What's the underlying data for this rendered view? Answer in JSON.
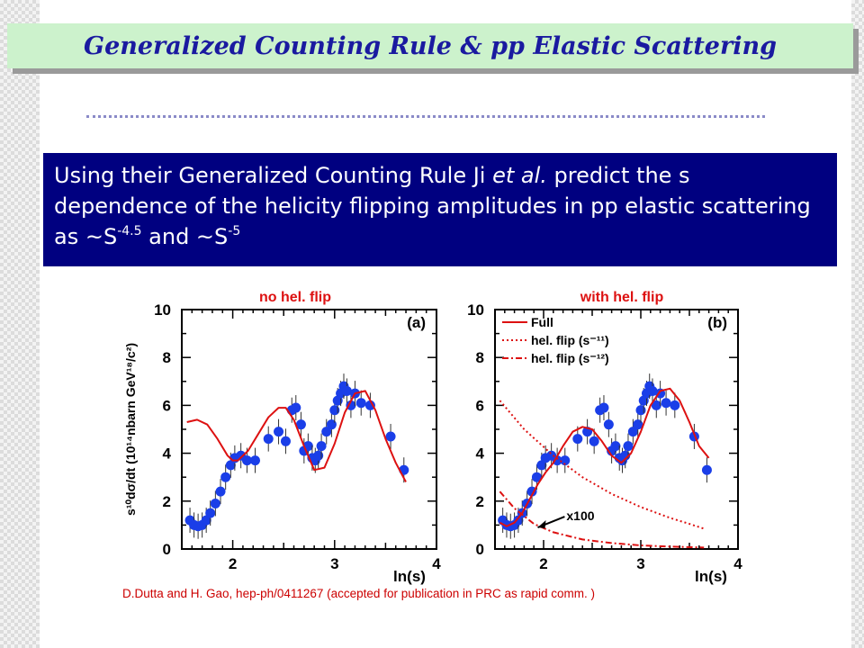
{
  "slide": {
    "title": "Generalized Counting Rule & pp Elastic Scattering",
    "text": {
      "part1": "Using their Generalized Counting Rule Ji ",
      "etal": "et al.",
      "part2": " predict the s dependence of  the helicity flipping amplitudes in pp elastic scattering as ~S",
      "exp1": "-4.5",
      "and": " and ~S",
      "exp2": "-5"
    },
    "citation": "D.Dutta and H. Gao, hep-ph/0411267 (accepted for publication in PRC as rapid comm. )"
  },
  "chart_data": [
    {
      "panel": "(a)",
      "heading": "no hel. flip",
      "type": "scatter",
      "ylabel": "s¹⁰dσ/dt (10¹⁴nbarn GeV¹⁸/c²)",
      "xlabel": "ln(s)",
      "xlim": [
        1.5,
        4.0
      ],
      "ylim": [
        0,
        10
      ],
      "xticks": [
        "2",
        "3",
        "4"
      ],
      "yticks": [
        "0",
        "2",
        "4",
        "6",
        "8",
        "10"
      ],
      "points": [
        [
          1.58,
          1.2
        ],
        [
          1.62,
          1.0
        ],
        [
          1.66,
          0.95
        ],
        [
          1.7,
          1.0
        ],
        [
          1.74,
          1.2
        ],
        [
          1.78,
          1.5
        ],
        [
          1.83,
          1.9
        ],
        [
          1.88,
          2.4
        ],
        [
          1.93,
          3.0
        ],
        [
          1.98,
          3.5
        ],
        [
          2.02,
          3.8
        ],
        [
          2.08,
          3.9
        ],
        [
          2.14,
          3.7
        ],
        [
          2.22,
          3.7
        ],
        [
          2.35,
          4.6
        ],
        [
          2.45,
          4.9
        ],
        [
          2.52,
          4.5
        ],
        [
          2.58,
          5.8
        ],
        [
          2.62,
          5.9
        ],
        [
          2.67,
          5.2
        ],
        [
          2.7,
          4.1
        ],
        [
          2.74,
          4.3
        ],
        [
          2.78,
          3.8
        ],
        [
          2.81,
          3.7
        ],
        [
          2.84,
          3.9
        ],
        [
          2.87,
          4.3
        ],
        [
          2.92,
          4.9
        ],
        [
          2.97,
          5.2
        ],
        [
          3.0,
          5.8
        ],
        [
          3.03,
          6.2
        ],
        [
          3.06,
          6.5
        ],
        [
          3.09,
          6.8
        ],
        [
          3.12,
          6.6
        ],
        [
          3.16,
          6.0
        ],
        [
          3.2,
          6.5
        ],
        [
          3.26,
          6.1
        ],
        [
          3.35,
          6.0
        ],
        [
          3.55,
          4.7
        ],
        [
          3.68,
          3.3
        ]
      ],
      "series": [
        {
          "style": "solid",
          "color": "#dd1111",
          "x": [
            1.55,
            1.65,
            1.75,
            1.85,
            1.95,
            2.0,
            2.05,
            2.15,
            2.25,
            2.35,
            2.45,
            2.52,
            2.6,
            2.7,
            2.8,
            2.9,
            3.0,
            3.1,
            3.2,
            3.3,
            3.4,
            3.5,
            3.6,
            3.7
          ],
          "y": [
            5.3,
            5.4,
            5.2,
            4.6,
            3.9,
            3.7,
            3.7,
            4.1,
            4.8,
            5.5,
            5.9,
            5.9,
            5.4,
            4.3,
            3.3,
            3.4,
            4.4,
            5.7,
            6.5,
            6.6,
            5.8,
            4.6,
            3.6,
            2.8
          ]
        }
      ]
    },
    {
      "panel": "(b)",
      "heading": "with  hel. flip",
      "type": "scatter",
      "xlabel": "ln(s)",
      "xlim": [
        1.5,
        4.0
      ],
      "ylim": [
        0,
        10
      ],
      "xticks": [
        "2",
        "3",
        "4"
      ],
      "yticks": [
        "0",
        "2",
        "4",
        "6",
        "8",
        "10"
      ],
      "annotation": "x100",
      "points": [
        [
          1.58,
          1.2
        ],
        [
          1.62,
          1.0
        ],
        [
          1.66,
          0.95
        ],
        [
          1.7,
          1.0
        ],
        [
          1.74,
          1.2
        ],
        [
          1.78,
          1.5
        ],
        [
          1.83,
          1.9
        ],
        [
          1.88,
          2.4
        ],
        [
          1.93,
          3.0
        ],
        [
          1.98,
          3.5
        ],
        [
          2.02,
          3.8
        ],
        [
          2.08,
          3.9
        ],
        [
          2.14,
          3.7
        ],
        [
          2.22,
          3.7
        ],
        [
          2.35,
          4.6
        ],
        [
          2.45,
          4.9
        ],
        [
          2.52,
          4.5
        ],
        [
          2.58,
          5.8
        ],
        [
          2.62,
          5.9
        ],
        [
          2.67,
          5.2
        ],
        [
          2.7,
          4.1
        ],
        [
          2.74,
          4.3
        ],
        [
          2.78,
          3.8
        ],
        [
          2.81,
          3.7
        ],
        [
          2.84,
          3.9
        ],
        [
          2.87,
          4.3
        ],
        [
          2.92,
          4.9
        ],
        [
          2.97,
          5.2
        ],
        [
          3.0,
          5.8
        ],
        [
          3.03,
          6.2
        ],
        [
          3.06,
          6.5
        ],
        [
          3.09,
          6.8
        ],
        [
          3.12,
          6.6
        ],
        [
          3.16,
          6.0
        ],
        [
          3.2,
          6.5
        ],
        [
          3.26,
          6.1
        ],
        [
          3.35,
          6.0
        ],
        [
          3.55,
          4.7
        ],
        [
          3.68,
          3.3
        ]
      ],
      "series": [
        {
          "name": "Full",
          "style": "solid",
          "color": "#dd1111",
          "x": [
            1.55,
            1.62,
            1.7,
            1.78,
            1.86,
            1.94,
            2.02,
            2.1,
            2.2,
            2.3,
            2.4,
            2.5,
            2.6,
            2.7,
            2.8,
            2.9,
            3.0,
            3.1,
            3.2,
            3.3,
            3.4,
            3.5,
            3.6,
            3.7
          ],
          "y": [
            1.1,
            0.95,
            1.1,
            1.5,
            2.1,
            2.7,
            3.2,
            3.6,
            4.3,
            4.9,
            5.1,
            5.0,
            4.5,
            3.9,
            3.6,
            4.0,
            4.9,
            6.0,
            6.6,
            6.7,
            6.2,
            5.3,
            4.3,
            3.8
          ]
        },
        {
          "name": "hel. flip (s⁻¹¹)",
          "style": "dotted",
          "color": "#dd1111",
          "x": [
            1.55,
            1.8,
            2.1,
            2.4,
            2.7,
            3.0,
            3.3,
            3.5,
            3.65
          ],
          "y": [
            6.2,
            5.0,
            3.9,
            3.0,
            2.3,
            1.75,
            1.3,
            1.05,
            0.85
          ]
        },
        {
          "name": "hel. flip (s⁻¹²)",
          "style": "dashdot",
          "color": "#dd1111",
          "x": [
            1.55,
            1.7,
            1.9,
            2.1,
            2.4,
            2.7,
            3.0,
            3.3,
            3.65
          ],
          "y": [
            2.4,
            1.7,
            1.05,
            0.7,
            0.4,
            0.25,
            0.15,
            0.1,
            0.06
          ]
        }
      ]
    }
  ]
}
